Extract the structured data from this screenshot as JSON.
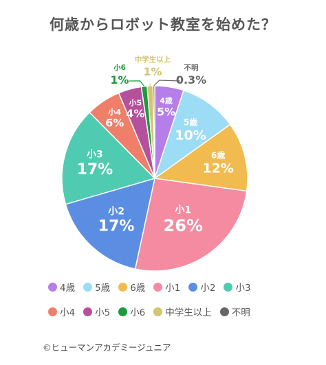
{
  "title": "何歳からロボット教室を始めた？",
  "credit": "©ヒューマンアカデミージュニア",
  "chart_data": {
    "type": "pie",
    "title": "何歳からロボット教室を始めた？",
    "slices": [
      {
        "label": "4歳",
        "value": 5,
        "value_label": "5%",
        "color": "#b57ee8"
      },
      {
        "label": "5歳",
        "value": 10,
        "value_label": "10%",
        "color": "#9ddcf5"
      },
      {
        "label": "6歳",
        "value": 12,
        "value_label": "12%",
        "color": "#f2bb4f"
      },
      {
        "label": "小1",
        "value": 26,
        "value_label": "26%",
        "color": "#f48ba1"
      },
      {
        "label": "小2",
        "value": 17,
        "value_label": "17%",
        "color": "#5b8ee3"
      },
      {
        "label": "小3",
        "value": 17,
        "value_label": "17%",
        "color": "#4ecbb0"
      },
      {
        "label": "小4",
        "value": 6,
        "value_label": "6%",
        "color": "#ef7f6a"
      },
      {
        "label": "小5",
        "value": 4,
        "value_label": "4%",
        "color": "#b5519c"
      },
      {
        "label": "小6",
        "value": 1,
        "value_label": "1%",
        "color": "#1d9a3c"
      },
      {
        "label": "中学生以上",
        "value": 1,
        "value_label": "1%",
        "color": "#d3c46d"
      },
      {
        "label": "不明",
        "value": 0.3,
        "value_label": "0.3%",
        "color": "#666666"
      }
    ],
    "legend_placement": "bottom"
  }
}
